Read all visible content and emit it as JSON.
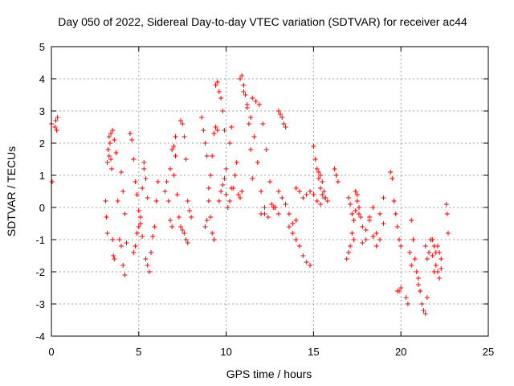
{
  "chart_data": {
    "type": "scatter",
    "title": "Day 050 of 2022, Sidereal Day-to-day VTEC variation (SDTVAR) for receiver ac44",
    "xlabel": "GPS time / hours",
    "ylabel": "SDTVAR / TECUs",
    "xlim": [
      0,
      25
    ],
    "ylim": [
      -4,
      5
    ],
    "xticks": [
      0,
      5,
      10,
      15,
      20,
      25
    ],
    "xtick_labels": [
      "0",
      "5",
      "10",
      "15",
      "20",
      "25"
    ],
    "yticks": [
      -4,
      -3,
      -2,
      -1,
      0,
      1,
      2,
      3,
      4,
      5
    ],
    "ytick_labels": [
      "-4",
      "-3",
      "-2",
      "-1",
      "0",
      "1",
      "2",
      "3",
      "4",
      "5"
    ],
    "grid": true,
    "marker": "+",
    "color": "#ff0000",
    "series": [
      {
        "name": "SDTVAR",
        "x": [
          0.0,
          0.05,
          0.2,
          0.25,
          0.3,
          0.35,
          3.1,
          3.15,
          3.2,
          3.25,
          3.3,
          3.35,
          3.4,
          3.45,
          3.5,
          3.55,
          3.6,
          3.2,
          3.3,
          3.4,
          3.5,
          3.6,
          3.7,
          3.8,
          3.9,
          4.0,
          4.1,
          4.2,
          4.0,
          4.1,
          4.2,
          4.3,
          4.5,
          4.6,
          4.7,
          4.8,
          4.9,
          5.0,
          5.1,
          5.2,
          4.7,
          4.8,
          4.9,
          5.0,
          5.1,
          5.2,
          5.3,
          5.4,
          5.5,
          5.6,
          5.7,
          5.8,
          5.9,
          6.0,
          6.1,
          5.3,
          5.4,
          5.5,
          6.5,
          6.6,
          6.7,
          6.8,
          6.9,
          7.0,
          7.1,
          6.8,
          6.9,
          7.0,
          7.1,
          7.2,
          7.3,
          7.4,
          7.4,
          7.5,
          7.6,
          7.7,
          7.8,
          7.9,
          8.0,
          7.5,
          7.6,
          7.7,
          7.8,
          8.6,
          8.7,
          8.8,
          8.9,
          9.0,
          9.1,
          9.2,
          9.3,
          8.8,
          8.9,
          9.0,
          9.1,
          9.2,
          9.3,
          9.4,
          9.5,
          9.4,
          9.5,
          9.6,
          9.7,
          9.8,
          9.9,
          10.0,
          9.6,
          9.7,
          9.8,
          9.9,
          10.0,
          10.1,
          10.2,
          10.3,
          10.2,
          10.3,
          10.4,
          10.5,
          10.6,
          10.7,
          10.8,
          10.9,
          10.8,
          10.9,
          11.0,
          11.1,
          11.2,
          11.3,
          11.4,
          11.5,
          11.0,
          11.2,
          11.4,
          11.6,
          11.8,
          12.0,
          12.2,
          11.5,
          11.7,
          11.9,
          12.1,
          12.3,
          12.5,
          12.7,
          12.0,
          12.2,
          12.4,
          12.6,
          12.8,
          13.0,
          13.0,
          13.1,
          13.2,
          13.3,
          13.4,
          13.0,
          13.2,
          13.4,
          13.6,
          13.8,
          14.0,
          13.6,
          13.8,
          14.0,
          14.2,
          14.4,
          14.6,
          14.8,
          14.0,
          14.2,
          14.4,
          14.6,
          14.8,
          15.0,
          15.2,
          15.4,
          15.0,
          15.1,
          15.2,
          15.3,
          15.4,
          15.5,
          15.6,
          15.3,
          15.4,
          15.5,
          15.6,
          15.7,
          15.8,
          16.2,
          16.3,
          16.4,
          16.9,
          17.0,
          17.1,
          17.2,
          17.3,
          17.4,
          17.5,
          17.0,
          17.1,
          17.2,
          17.3,
          17.4,
          17.5,
          17.6,
          17.7,
          17.6,
          17.8,
          18.0,
          18.2,
          18.4,
          18.6,
          18.8,
          19.0,
          17.8,
          18.0,
          18.2,
          18.4,
          18.6,
          18.8,
          19.0,
          19.4,
          19.5,
          19.6,
          19.7,
          19.8,
          19.9,
          20.0,
          19.8,
          19.9,
          20.0,
          20.3,
          20.4,
          20.5,
          20.6,
          20.6,
          20.7,
          20.8,
          20.9,
          21.0,
          21.1,
          21.0,
          21.1,
          21.2,
          21.3,
          21.4,
          21.5,
          21.4,
          21.5,
          21.6,
          21.7,
          21.8,
          21.9,
          22.0,
          22.1,
          22.2,
          22.3,
          21.8,
          21.9,
          22.0,
          22.1,
          22.2,
          22.3,
          22.6,
          22.65,
          22.7
        ],
        "y": [
          2.6,
          0.8,
          2.5,
          2.7,
          2.4,
          2.8,
          0.2,
          -0.3,
          -0.8,
          1.8,
          2.2,
          2.0,
          1.5,
          1.2,
          -1.0,
          -1.5,
          -1.6,
          1.4,
          1.6,
          2.3,
          2.4,
          2.1,
          1.7,
          0.2,
          -1.0,
          -1.2,
          -1.8,
          -2.1,
          1.1,
          0.5,
          -0.2,
          -1.1,
          2.3,
          2.1,
          1.5,
          0.8,
          0.4,
          -0.1,
          -0.5,
          -0.9,
          -1.4,
          -1.2,
          -0.8,
          -0.6,
          -0.3,
          0.6,
          1.2,
          -1.6,
          -1.8,
          -2.0,
          -1.4,
          -0.9,
          -0.6,
          0.2,
          0.8,
          1.4,
          0.9,
          0.3,
          0.5,
          0.8,
          0.2,
          -0.4,
          -0.6,
          1.0,
          1.6,
          1.2,
          1.8,
          1.9,
          2.2,
          0.4,
          -0.3,
          -0.6,
          2.7,
          2.6,
          2.2,
          1.5,
          0.2,
          -0.1,
          -0.3,
          -0.7,
          -0.8,
          -1.0,
          -1.1,
          2.8,
          2.4,
          2.0,
          1.6,
          0.6,
          -0.3,
          -0.8,
          -1.0,
          -0.6,
          -0.4,
          0.2,
          1.0,
          1.6,
          2.3,
          2.5,
          2.4,
          3.8,
          3.9,
          3.6,
          3.4,
          3.0,
          2.4,
          1.2,
          0.2,
          0.5,
          0.7,
          0.9,
          0.4,
          0.0,
          0.2,
          0.6,
          2.0,
          2.5,
          0.6,
          1.0,
          1.4,
          0.4,
          0.3,
          0.5,
          4.0,
          4.1,
          3.8,
          3.5,
          3.1,
          2.6,
          1.8,
          0.9,
          3.6,
          3.2,
          2.8,
          2.2,
          1.4,
          0.5,
          -0.2,
          3.4,
          3.3,
          3.2,
          2.6,
          1.8,
          0.8,
          0.0,
          -0.2,
          0.0,
          -0.3,
          0.1,
          0.0,
          -0.2,
          3.0,
          2.9,
          2.8,
          2.6,
          2.5,
          0.5,
          0.3,
          0.1,
          -0.2,
          -0.5,
          -0.4,
          -0.6,
          -0.8,
          -1.0,
          -1.2,
          -1.5,
          -1.7,
          -1.8,
          0.6,
          0.5,
          0.3,
          0.4,
          0.5,
          0.4,
          0.2,
          0.1,
          1.9,
          1.5,
          1.2,
          0.9,
          0.6,
          0.4,
          0.3,
          1.1,
          1.0,
          0.8,
          0.5,
          0.3,
          0.2,
          1.2,
          1.0,
          0.8,
          -1.6,
          -1.4,
          -1.2,
          -0.8,
          -1.0,
          0.5,
          0.4,
          0.3,
          0.1,
          -0.2,
          -0.4,
          -0.1,
          0.2,
          0.0,
          -0.3,
          -0.2,
          -0.6,
          -1.0,
          -0.4,
          0.0,
          -0.8,
          -1.0,
          -0.5,
          -1.1,
          -0.7,
          -0.3,
          -0.9,
          -1.2,
          -0.2,
          0.3,
          1.1,
          0.9,
          0.2,
          -0.2,
          -0.6,
          -1.0,
          -1.2,
          -2.6,
          -2.6,
          -2.5,
          -2.8,
          -3.0,
          -1.4,
          -1.8,
          -0.4,
          -1.0,
          -1.6,
          -2.0,
          -2.4,
          -2.6,
          -2.2,
          -2.6,
          -3.0,
          -3.2,
          -3.3,
          -2.8,
          -1.2,
          -1.6,
          -1.4,
          -1.0,
          -1.5,
          -2.0,
          -1.8,
          -1.2,
          -1.4,
          -1.6,
          -1.0,
          -1.2,
          -1.4,
          -2.0,
          -2.2,
          -1.9,
          0.1,
          -0.2,
          -0.8
        ]
      }
    ]
  }
}
